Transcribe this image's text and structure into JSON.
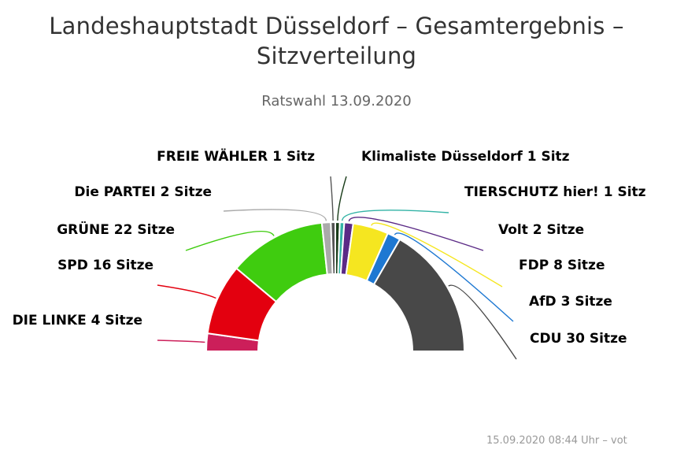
{
  "title_line1": "Landeshauptstadt Düsseldorf – Gesamtergebnis –",
  "title_line2": "Sitzverteilung",
  "subtitle": "Ratswahl 13.09.2020",
  "footer": "15.09.2020 08:44 Uhr – vot",
  "chart_data": {
    "type": "pie",
    "variant": "semicircle-parliament",
    "title": "Landeshauptstadt Düsseldorf – Gesamtergebnis – Sitzverteilung",
    "subtitle": "Ratswahl 13.09.2020",
    "series": [
      {
        "name": "DIE LINKE",
        "value": 4,
        "label": "DIE LINKE 4 Sitze",
        "color": "#cc1f5a"
      },
      {
        "name": "SPD",
        "value": 16,
        "label": "SPD 16 Sitze",
        "color": "#e3000f"
      },
      {
        "name": "GRÜNE",
        "value": 22,
        "label": "GRÜNE 22 Sitze",
        "color": "#3fcc0f"
      },
      {
        "name": "Die PARTEI",
        "value": 2,
        "label": "Die PARTEI 2 Sitze",
        "color": "#aaaaaa"
      },
      {
        "name": "FREIE WÄHLER",
        "value": 1,
        "label": "FREIE WÄHLER 1 Sitz",
        "color": "#555555"
      },
      {
        "name": "Klimaliste Düsseldorf",
        "value": 1,
        "label": "Klimaliste Düsseldorf 1 Sitz",
        "color": "#1a3d1a"
      },
      {
        "name": "TIERSCHUTZ hier!",
        "value": 1,
        "label": "TIERSCHUTZ hier! 1 Sitz",
        "color": "#33b3a6"
      },
      {
        "name": "Volt",
        "value": 2,
        "label": "Volt 2 Sitze",
        "color": "#5b2a86"
      },
      {
        "name": "FDP",
        "value": 8,
        "label": "FDP 8 Sitze",
        "color": "#f5e620"
      },
      {
        "name": "AfD",
        "value": 3,
        "label": "AfD 3 Sitze",
        "color": "#1e78d2"
      },
      {
        "name": "CDU",
        "value": 30,
        "label": "CDU 30 Sitze",
        "color": "#484848"
      }
    ]
  }
}
